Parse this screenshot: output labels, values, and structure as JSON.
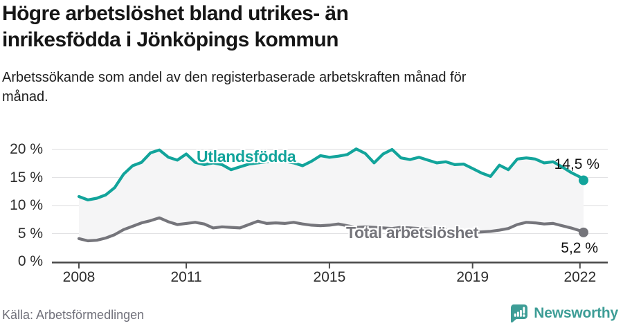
{
  "header": {
    "title_lines": [
      "Högre arbetslöshet bland utrikes- än",
      "inrikesfödda i Jönköpings kommun"
    ],
    "subtitle_lines": [
      "Arbetssökande som andel av den registerbaserade arbetskraften månad för",
      "månad."
    ]
  },
  "chart_data": {
    "type": "line",
    "title": "Högre arbetslöshet bland utrikes- än inrikesfödda i Jönköpings kommun",
    "xlabel": "",
    "ylabel": "Arbetssökande som andel av den registerbaserade arbetskraften",
    "grid": true,
    "legend": "inline-labels",
    "ylim": [
      0,
      21
    ],
    "xlim": [
      2008,
      2022.6
    ],
    "x_ticks": [
      2008,
      2011,
      2015,
      2019,
      2022
    ],
    "x_tick_labels": [
      "2008",
      "2011",
      "2015",
      "2019",
      "2022"
    ],
    "y_ticks": [
      0,
      5,
      10,
      15,
      20
    ],
    "y_tick_labels": [
      "0 %",
      "5 %",
      "10 %",
      "15 %",
      "20 %"
    ],
    "band_fill": "#f5f5f6",
    "grid_color": "#e2e2e4",
    "axis_color": "#4b4b4b",
    "x": [
      2008.0,
      2008.25,
      2008.5,
      2008.75,
      2009.0,
      2009.25,
      2009.5,
      2009.75,
      2010.0,
      2010.25,
      2010.5,
      2010.75,
      2011.0,
      2011.25,
      2011.5,
      2011.75,
      2012.0,
      2012.25,
      2012.5,
      2012.75,
      2013.0,
      2013.25,
      2013.5,
      2013.75,
      2014.0,
      2014.25,
      2014.5,
      2014.75,
      2015.0,
      2015.25,
      2015.5,
      2015.75,
      2016.0,
      2016.25,
      2016.5,
      2016.75,
      2017.0,
      2017.25,
      2017.5,
      2017.75,
      2018.0,
      2018.25,
      2018.5,
      2018.75,
      2019.0,
      2019.25,
      2019.5,
      2019.75,
      2020.0,
      2020.25,
      2020.5,
      2020.75,
      2021.0,
      2021.25,
      2021.5,
      2021.75,
      2022.0,
      2022.1
    ],
    "series": [
      {
        "name": "Utlandsfödda",
        "slug": "utlandsfodda",
        "color": "#12a49b",
        "end_label": "14,5 %",
        "end_value": 14.5,
        "values": [
          11.6,
          11.0,
          11.3,
          11.9,
          13.2,
          15.6,
          17.1,
          17.7,
          19.4,
          19.9,
          18.6,
          18.1,
          19.2,
          17.7,
          17.3,
          17.6,
          17.3,
          16.4,
          16.9,
          17.4,
          17.6,
          17.8,
          18.0,
          17.9,
          17.6,
          17.1,
          17.9,
          18.9,
          18.6,
          18.8,
          19.1,
          20.1,
          19.3,
          17.6,
          19.2,
          20.0,
          18.5,
          18.2,
          18.6,
          18.1,
          17.6,
          17.8,
          17.3,
          17.4,
          16.6,
          15.8,
          15.2,
          17.2,
          16.4,
          18.3,
          18.5,
          18.3,
          17.6,
          17.8,
          16.9,
          15.9,
          15.1,
          14.5
        ]
      },
      {
        "name": "Total arbetslöshet",
        "slug": "total-arbetsloshet",
        "color": "#75757b",
        "end_label": "5,2 %",
        "end_value": 5.2,
        "values": [
          4.1,
          3.7,
          3.8,
          4.2,
          4.8,
          5.7,
          6.3,
          6.9,
          7.3,
          7.8,
          7.1,
          6.6,
          6.8,
          7.0,
          6.7,
          6.0,
          6.2,
          6.1,
          6.0,
          6.6,
          7.2,
          6.8,
          6.9,
          6.8,
          7.0,
          6.7,
          6.5,
          6.4,
          6.5,
          6.7,
          6.4,
          6.1,
          6.2,
          6.1,
          6.0,
          5.9,
          6.1,
          6.0,
          5.9,
          5.8,
          5.6,
          5.6,
          5.4,
          5.3,
          5.2,
          5.3,
          5.4,
          5.6,
          5.9,
          6.6,
          7.0,
          6.9,
          6.7,
          6.8,
          6.4,
          6.0,
          5.5,
          5.2
        ]
      }
    ]
  },
  "footer": {
    "source": "Källa: Arbetsförmedlingen",
    "brand": "Newsworthy",
    "brand_color": "#3d9d96",
    "brand_icon": "newsworthy-bubble-chart-icon"
  }
}
